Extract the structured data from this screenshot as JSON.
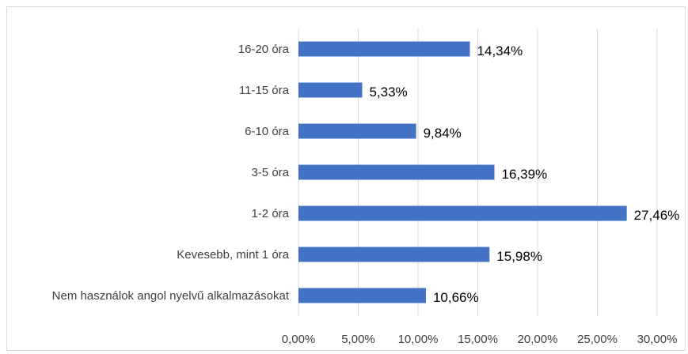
{
  "chart_data": {
    "type": "bar",
    "orientation": "horizontal",
    "categories": [
      "16-20 óra",
      "11-15 óra",
      "6-10 óra",
      "3-5 óra",
      "1-2 óra",
      "Kevesebb, mint 1 óra",
      "Nem használok angol nyelvű alkalmazásokat"
    ],
    "values": [
      14.34,
      5.33,
      9.84,
      16.39,
      27.46,
      15.98,
      10.66
    ],
    "data_labels": [
      "14,34%",
      "5,33%",
      "9,84%",
      "16,39%",
      "27,46%",
      "15,98%",
      "10,66%"
    ],
    "x_ticks": [
      "0,00%",
      "5,00%",
      "10,00%",
      "15,00%",
      "20,00%",
      "25,00%",
      "30,00%"
    ],
    "xlim": [
      0,
      30
    ],
    "grid": true,
    "title": "",
    "xlabel": "",
    "ylabel": "",
    "bar_color": "#4472c4"
  }
}
